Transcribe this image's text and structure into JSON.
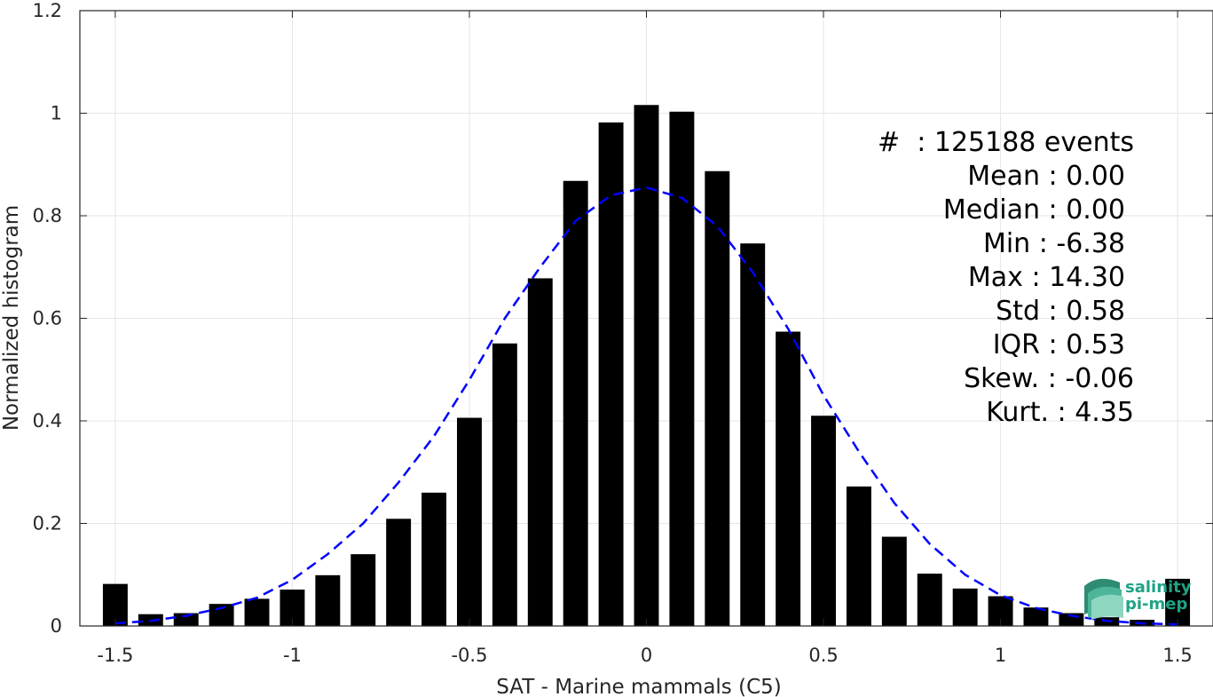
{
  "chart_data": {
    "type": "bar",
    "xlabel": "SAT - Marine mammals (C5)",
    "ylabel": "Normalized histogram",
    "xlim": [
      -1.6,
      1.6
    ],
    "ylim": [
      0,
      1.2
    ],
    "x_ticks": [
      -1.5,
      -1,
      -0.5,
      0,
      0.5,
      1,
      1.5
    ],
    "x_tick_labels": [
      "-1.5",
      "-1",
      "-0.5",
      "0",
      "0.5",
      "1",
      "1.5"
    ],
    "y_ticks": [
      0,
      0.2,
      0.4,
      0.6,
      0.8,
      1,
      1.2
    ],
    "y_tick_labels": [
      "0",
      "0.2",
      "0.4",
      "0.6",
      "0.8",
      "1",
      "1.2"
    ],
    "grid": true,
    "bar_color": "#000000",
    "series": [
      {
        "type": "bar",
        "x": [
          -1.5,
          -1.4,
          -1.3,
          -1.2,
          -1.1,
          -1.0,
          -0.9,
          -0.8,
          -0.7,
          -0.6,
          -0.5,
          -0.4,
          -0.3,
          -0.2,
          -0.1,
          0.0,
          0.1,
          0.2,
          0.3,
          0.4,
          0.5,
          0.6,
          0.7,
          0.8,
          0.9,
          1.0,
          1.1,
          1.2,
          1.3,
          1.4,
          1.5
        ],
        "values": [
          0.082,
          0.023,
          0.025,
          0.043,
          0.053,
          0.071,
          0.099,
          0.14,
          0.209,
          0.26,
          0.406,
          0.551,
          0.678,
          0.868,
          0.982,
          1.016,
          1.003,
          0.887,
          0.746,
          0.574,
          0.41,
          0.272,
          0.174,
          0.102,
          0.073,
          0.058,
          0.036,
          0.025,
          0.017,
          0.012,
          0.092
        ]
      },
      {
        "type": "line",
        "style": "dashed",
        "color": "#0000ff",
        "x": [
          -1.5,
          -1.4,
          -1.3,
          -1.2,
          -1.1,
          -1.0,
          -0.9,
          -0.8,
          -0.7,
          -0.6,
          -0.5,
          -0.4,
          -0.3,
          -0.2,
          -0.1,
          0.0,
          0.1,
          0.2,
          0.3,
          0.4,
          0.5,
          0.6,
          0.7,
          0.8,
          0.9,
          1.0,
          1.1,
          1.2,
          1.3,
          1.4,
          1.5
        ],
        "values": [
          0.005,
          0.01,
          0.02,
          0.035,
          0.055,
          0.09,
          0.14,
          0.2,
          0.28,
          0.37,
          0.48,
          0.6,
          0.7,
          0.79,
          0.84,
          0.855,
          0.835,
          0.78,
          0.69,
          0.58,
          0.45,
          0.34,
          0.24,
          0.16,
          0.1,
          0.06,
          0.035,
          0.02,
          0.01,
          0.005,
          0.003
        ]
      }
    ],
    "annotations": [
      "#  : 125188 events",
      "Mean : 0.00",
      "Median : 0.00",
      "Min : -6.38",
      "Max : 14.30",
      "Std : 0.58",
      "IQR : 0.53",
      "Skew. : -0.06",
      "Kurt. : 4.35"
    ]
  },
  "logo": {
    "line1": "salinity",
    "line2": "pi-mep",
    "color": "#1fa386"
  }
}
